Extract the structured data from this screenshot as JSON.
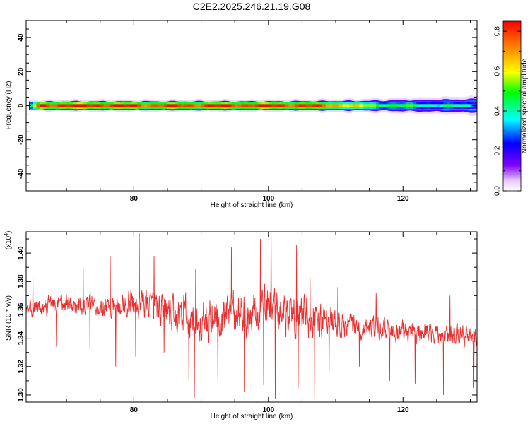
{
  "title": "C2E2.2025.246.21.19.G08",
  "chart_data": [
    {
      "type": "heatmap",
      "xlabel": "Height of straight line (km)",
      "ylabel": "Frequency (Hz)",
      "xlim": [
        64,
        131
      ],
      "ylim": [
        -50,
        50
      ],
      "xticks": [
        80,
        100,
        120
      ],
      "xtick_labels": [
        "80",
        "100",
        "120"
      ],
      "yticks": [
        -40,
        -20,
        0,
        20,
        40
      ],
      "ytick_labels": [
        "-40",
        "-20",
        "0",
        "20",
        "40"
      ],
      "band": {
        "center_frequency": 0,
        "core": [
          {
            "x": 64.5,
            "amp": 0.35
          },
          {
            "x": 66,
            "amp": 0.82
          },
          {
            "x": 75,
            "amp": 0.84
          },
          {
            "x": 82,
            "amp": 0.78
          },
          {
            "x": 90,
            "amp": 0.8
          },
          {
            "x": 100,
            "amp": 0.82
          },
          {
            "x": 105,
            "amp": 0.8
          },
          {
            "x": 110,
            "amp": 0.72
          },
          {
            "x": 114,
            "amp": 0.55
          },
          {
            "x": 120,
            "amp": 0.45
          },
          {
            "x": 126,
            "amp": 0.4
          },
          {
            "x": 131,
            "amp": 0.35
          }
        ],
        "half_width_hz": [
          {
            "x": 64.5,
            "w": 3
          },
          {
            "x": 70,
            "w": 3.5
          },
          {
            "x": 100,
            "w": 3.5
          },
          {
            "x": 115,
            "w": 4
          },
          {
            "x": 131,
            "w": 5.5
          }
        ]
      },
      "colorbar": {
        "label": "Normalized spectral amplitude",
        "range": [
          0,
          0.85
        ],
        "ticks": [
          0,
          0.2,
          0.4,
          0.6,
          0.8
        ],
        "tick_labels": [
          "0.0",
          "0.2",
          "0.4",
          "0.6",
          "0.8"
        ]
      }
    },
    {
      "type": "line",
      "xlabel": "Height of straight line (km)",
      "ylabel": "SNR (10 * v/v)",
      "y_multiplier": "(x10",
      "y_multiplier_exp": "4",
      "xlim": [
        64,
        131
      ],
      "ylim": [
        1.295,
        1.415
      ],
      "xticks": [
        80,
        100,
        120
      ],
      "xtick_labels": [
        "80",
        "100",
        "120"
      ],
      "yticks": [
        1.3,
        1.32,
        1.34,
        1.36,
        1.38,
        1.4
      ],
      "ytick_labels": [
        "1.30",
        "1.32",
        "1.34",
        "1.36",
        "1.38",
        "1.40"
      ],
      "series": [
        {
          "color": "#e83030",
          "sample_count": 1400,
          "trend": [
            {
              "x": 64,
              "y": 1.362
            },
            {
              "x": 70,
              "y": 1.363
            },
            {
              "x": 76,
              "y": 1.362
            },
            {
              "x": 80,
              "y": 1.366
            },
            {
              "x": 84,
              "y": 1.36
            },
            {
              "x": 88,
              "y": 1.356
            },
            {
              "x": 90,
              "y": 1.352
            },
            {
              "x": 94,
              "y": 1.358
            },
            {
              "x": 98,
              "y": 1.356
            },
            {
              "x": 100,
              "y": 1.362
            },
            {
              "x": 104,
              "y": 1.356
            },
            {
              "x": 108,
              "y": 1.352
            },
            {
              "x": 112,
              "y": 1.35
            },
            {
              "x": 116,
              "y": 1.347
            },
            {
              "x": 120,
              "y": 1.345
            },
            {
              "x": 124,
              "y": 1.343
            },
            {
              "x": 128,
              "y": 1.342
            },
            {
              "x": 131,
              "y": 1.342
            }
          ],
          "amplitude": [
            {
              "x": 64,
              "a": 0.009
            },
            {
              "x": 78,
              "a": 0.011
            },
            {
              "x": 84,
              "a": 0.015
            },
            {
              "x": 88,
              "a": 0.02
            },
            {
              "x": 96,
              "a": 0.02
            },
            {
              "x": 106,
              "a": 0.02
            },
            {
              "x": 110,
              "a": 0.013
            },
            {
              "x": 120,
              "a": 0.009
            },
            {
              "x": 131,
              "a": 0.01
            }
          ],
          "peaks": [
            {
              "x": 65,
              "y": 1.383
            },
            {
              "x": 72.5,
              "y": 1.39
            },
            {
              "x": 76.5,
              "y": 1.398
            },
            {
              "x": 80.8,
              "y": 1.414
            },
            {
              "x": 83,
              "y": 1.398
            },
            {
              "x": 89.2,
              "y": 1.389
            },
            {
              "x": 94.5,
              "y": 1.404
            },
            {
              "x": 98.8,
              "y": 1.41
            },
            {
              "x": 100.4,
              "y": 1.416
            },
            {
              "x": 104.2,
              "y": 1.406
            },
            {
              "x": 106.2,
              "y": 1.382
            },
            {
              "x": 110.3,
              "y": 1.376
            },
            {
              "x": 116,
              "y": 1.372
            },
            {
              "x": 127,
              "y": 1.37
            }
          ],
          "dips": [
            {
              "x": 68.5,
              "y": 1.334
            },
            {
              "x": 73.5,
              "y": 1.332
            },
            {
              "x": 77.3,
              "y": 1.32
            },
            {
              "x": 80.3,
              "y": 1.327
            },
            {
              "x": 84.5,
              "y": 1.33
            },
            {
              "x": 88.2,
              "y": 1.31
            },
            {
              "x": 89,
              "y": 1.298
            },
            {
              "x": 92.5,
              "y": 1.31
            },
            {
              "x": 96.4,
              "y": 1.302
            },
            {
              "x": 99.3,
              "y": 1.307
            },
            {
              "x": 101,
              "y": 1.297
            },
            {
              "x": 104.4,
              "y": 1.305
            },
            {
              "x": 106.8,
              "y": 1.297
            },
            {
              "x": 109,
              "y": 1.316
            },
            {
              "x": 113.5,
              "y": 1.32
            },
            {
              "x": 118,
              "y": 1.31
            },
            {
              "x": 121.8,
              "y": 1.308
            },
            {
              "x": 126,
              "y": 1.3
            },
            {
              "x": 130.5,
              "y": 1.305
            }
          ]
        }
      ]
    }
  ]
}
